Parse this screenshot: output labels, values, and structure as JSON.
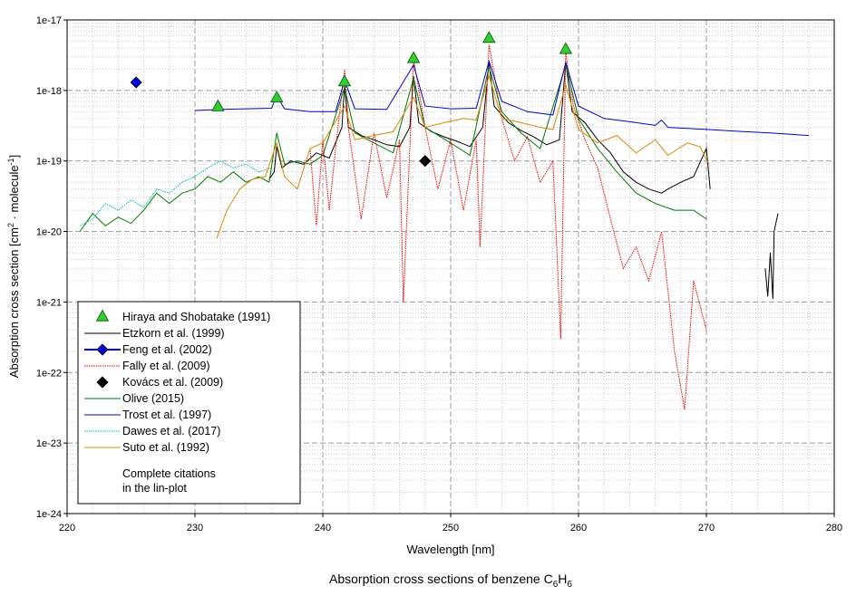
{
  "chart_data": {
    "type": "line",
    "title": "Absorption cross sections of benzene C",
    "title_sub1": "6",
    "title_mid": "H",
    "title_sub2": "6",
    "xlabel": "Wavelength [nm]",
    "ylabel": "Absorption cross section [cm",
    "ylabel_sup1": "2",
    "ylabel_mid": " · molecule",
    "ylabel_sup2": "-1",
    "ylabel_end": "]",
    "xlim": [
      220,
      280
    ],
    "ylim_log10": [
      -24,
      -17
    ],
    "x_ticks": [
      "220",
      "230",
      "240",
      "250",
      "260",
      "270",
      "280"
    ],
    "x_tick_values": [
      220,
      230,
      240,
      250,
      260,
      270,
      280
    ],
    "y_ticks": [
      "1e-17",
      "1e-18",
      "1e-19",
      "1e-20",
      "1e-21",
      "1e-22",
      "1e-23",
      "1e-24"
    ],
    "y_tick_exponents": [
      -17,
      -18,
      -19,
      -20,
      -21,
      -22,
      -23,
      -24
    ],
    "grid": true,
    "legend_position": "bottom-left",
    "note_line1": "Complete citations",
    "note_line2": "in the lin-plot",
    "series": [
      {
        "name": "Hiraya and Shobatake (1991)",
        "kind": "marker-triangle",
        "color": "#33cc33",
        "points": [
          [
            231.8,
            6e-19
          ],
          [
            236.4,
            8e-19
          ],
          [
            241.7,
            1.35e-18
          ],
          [
            247.1,
            2.9e-18
          ],
          [
            253.0,
            5.6e-18
          ],
          [
            259.0,
            3.9e-18
          ]
        ]
      },
      {
        "name": "Etzkorn et al. (1999)",
        "kind": "line",
        "color": "#000000",
        "points": [
          [
            235.8,
            5.5e-20
          ],
          [
            236.2,
            7e-20
          ],
          [
            236.4,
            1.6e-19
          ],
          [
            236.8,
            8e-20
          ],
          [
            237.5,
            1e-19
          ],
          [
            238.5,
            9e-20
          ],
          [
            239.5,
            1.3e-19
          ],
          [
            240.5,
            1.1e-19
          ],
          [
            241.5,
            3e-19
          ],
          [
            241.7,
            1.2e-18
          ],
          [
            242.0,
            3e-19
          ],
          [
            243.0,
            2.3e-19
          ],
          [
            244.0,
            2e-19
          ],
          [
            245.0,
            1.7e-19
          ],
          [
            246.0,
            1.6e-19
          ],
          [
            246.8,
            3e-19
          ],
          [
            247.1,
            1.6e-18
          ],
          [
            247.5,
            3.5e-19
          ],
          [
            248.5,
            2.6e-19
          ],
          [
            249.5,
            2.2e-19
          ],
          [
            250.5,
            1.9e-19
          ],
          [
            251.5,
            1.6e-19
          ],
          [
            252.5,
            3e-19
          ],
          [
            253.0,
            2.5e-18
          ],
          [
            253.4,
            6e-19
          ],
          [
            254.5,
            3.5e-19
          ],
          [
            255.5,
            2.7e-19
          ],
          [
            256.5,
            2.2e-19
          ],
          [
            257.5,
            1.7e-19
          ],
          [
            258.5,
            2e-19
          ],
          [
            259.0,
            2.5e-18
          ],
          [
            259.5,
            5e-19
          ],
          [
            260.5,
            3.5e-19
          ],
          [
            261.5,
            2e-19
          ],
          [
            262.5,
            1.3e-19
          ],
          [
            263.5,
            7e-20
          ],
          [
            264.5,
            5e-20
          ],
          [
            265.5,
            4e-20
          ],
          [
            266.5,
            3.5e-20
          ],
          [
            267.0,
            4e-20
          ],
          [
            268.0,
            5e-20
          ],
          [
            269.0,
            6e-20
          ],
          [
            270.0,
            1.5e-19
          ],
          [
            270.3,
            4e-20
          ]
        ]
      },
      {
        "name": "Feng et al. (2002)",
        "kind": "marker-diamond",
        "color": "#0000dd",
        "points": [
          [
            225.4,
            1.3e-18
          ]
        ]
      },
      {
        "name": "Fally et al. (2009)",
        "kind": "dotted",
        "color": "#ee0000",
        "points": [
          [
            239.0,
            1.5e-19
          ],
          [
            239.5,
            1.2e-20
          ],
          [
            240.0,
            2e-19
          ],
          [
            240.5,
            2e-20
          ],
          [
            241.0,
            1.5e-19
          ],
          [
            241.7,
            2e-18
          ],
          [
            242.0,
            3e-19
          ],
          [
            243.0,
            1.5e-20
          ],
          [
            244.0,
            2.5e-19
          ],
          [
            245.0,
            3e-20
          ],
          [
            246.0,
            2e-19
          ],
          [
            246.3,
            1e-21
          ],
          [
            247.1,
            2.8e-18
          ],
          [
            248.0,
            3e-19
          ],
          [
            249.0,
            4e-20
          ],
          [
            250.0,
            2e-19
          ],
          [
            251.0,
            2e-20
          ],
          [
            252.0,
            2e-19
          ],
          [
            252.3,
            6e-21
          ],
          [
            253.0,
            4.5e-18
          ],
          [
            254.0,
            4e-19
          ],
          [
            255.0,
            1e-19
          ],
          [
            256.0,
            2.2e-19
          ],
          [
            257.0,
            5e-20
          ],
          [
            258.0,
            1e-19
          ],
          [
            258.6,
            3e-22
          ],
          [
            259.0,
            3.5e-18
          ],
          [
            259.6,
            6e-19
          ],
          [
            260.5,
            2e-19
          ],
          [
            261.5,
            8e-20
          ],
          [
            262.5,
            1.5e-20
          ],
          [
            263.5,
            3e-21
          ],
          [
            264.5,
            6e-21
          ],
          [
            265.5,
            2e-21
          ],
          [
            266.5,
            1e-20
          ],
          [
            267.5,
            2e-22
          ],
          [
            268.3,
            3e-23
          ],
          [
            269.0,
            2e-21
          ],
          [
            270.0,
            4e-22
          ]
        ]
      },
      {
        "name": "Kovács et al. (2009)",
        "kind": "marker-diamond",
        "color": "#000000",
        "points": [
          [
            248.0,
            1e-19
          ]
        ]
      },
      {
        "name": "Olive (2015)",
        "kind": "line",
        "color": "#007a00",
        "points": [
          [
            221.0,
            1e-20
          ],
          [
            222.0,
            1.8e-20
          ],
          [
            223.0,
            1.2e-20
          ],
          [
            224.0,
            1.6e-20
          ],
          [
            225.0,
            1.3e-20
          ],
          [
            226.0,
            2e-20
          ],
          [
            227.0,
            3.5e-20
          ],
          [
            228.0,
            2.5e-20
          ],
          [
            229.0,
            3.5e-20
          ],
          [
            230.0,
            4e-20
          ],
          [
            231.0,
            6e-20
          ],
          [
            232.0,
            5e-20
          ],
          [
            233.0,
            7e-20
          ],
          [
            234.0,
            5e-20
          ],
          [
            235.0,
            6e-20
          ],
          [
            235.8,
            5e-20
          ],
          [
            236.4,
            2.5e-19
          ],
          [
            237.0,
            9e-20
          ],
          [
            238.0,
            1e-19
          ],
          [
            239.0,
            9e-20
          ],
          [
            240.0,
            1.2e-19
          ],
          [
            241.7,
            1.1e-18
          ],
          [
            242.5,
            2.5e-19
          ],
          [
            244.0,
            1.8e-19
          ],
          [
            245.5,
            1.3e-19
          ],
          [
            247.1,
            1.5e-18
          ],
          [
            248.0,
            3e-19
          ],
          [
            250.0,
            1.8e-19
          ],
          [
            251.5,
            1.2e-19
          ],
          [
            253.0,
            2.2e-18
          ],
          [
            254.0,
            5e-19
          ],
          [
            255.5,
            2.5e-19
          ],
          [
            257.0,
            1.5e-19
          ],
          [
            259.0,
            2.3e-18
          ],
          [
            260.0,
            4e-19
          ],
          [
            261.5,
            1.5e-19
          ],
          [
            263.0,
            7e-20
          ],
          [
            264.5,
            3.5e-20
          ],
          [
            266.0,
            2.5e-20
          ],
          [
            267.5,
            2e-20
          ],
          [
            269.0,
            2e-20
          ],
          [
            270.0,
            1.5e-20
          ]
        ]
      },
      {
        "name": "Trost et al. (1997)",
        "kind": "line",
        "color": "#0000cc",
        "points": [
          [
            230.0,
            5.2e-19
          ],
          [
            232.0,
            5.4e-19
          ],
          [
            234.0,
            5.5e-19
          ],
          [
            236.0,
            5.6e-19
          ],
          [
            236.4,
            8.5e-19
          ],
          [
            237.0,
            5.5e-19
          ],
          [
            239.0,
            5e-19
          ],
          [
            241.0,
            5e-19
          ],
          [
            241.7,
            1.4e-18
          ],
          [
            242.5,
            5.5e-19
          ],
          [
            245.0,
            5.4e-19
          ],
          [
            247.1,
            2.3e-18
          ],
          [
            248.0,
            6e-19
          ],
          [
            250.0,
            5.5e-19
          ],
          [
            252.0,
            5.6e-19
          ],
          [
            253.0,
            2.6e-18
          ],
          [
            254.0,
            7e-19
          ],
          [
            256.0,
            5e-19
          ],
          [
            258.0,
            4.5e-19
          ],
          [
            259.0,
            2.5e-18
          ],
          [
            260.0,
            6e-19
          ],
          [
            262.0,
            4e-19
          ],
          [
            264.0,
            3.6e-19
          ],
          [
            266.0,
            3.2e-19
          ],
          [
            266.5,
            3.8e-19
          ],
          [
            267.0,
            3e-19
          ],
          [
            270.0,
            2.8e-19
          ],
          [
            273.0,
            2.6e-19
          ],
          [
            275.0,
            2.5e-19
          ],
          [
            278.0,
            2.3e-19
          ]
        ]
      },
      {
        "name": "Dawes et al. (2017)",
        "kind": "dotted",
        "color": "#00bbbb",
        "points": [
          [
            221.0,
            1.2e-20
          ],
          [
            222.0,
            1.5e-20
          ],
          [
            223.0,
            2.5e-20
          ],
          [
            224.0,
            2e-20
          ],
          [
            225.0,
            2.8e-20
          ],
          [
            226.0,
            2.2e-20
          ],
          [
            227.0,
            4e-20
          ],
          [
            228.0,
            3.5e-20
          ],
          [
            229.0,
            5e-20
          ],
          [
            230.0,
            6e-20
          ],
          [
            231.0,
            8e-20
          ],
          [
            232.0,
            1e-19
          ],
          [
            233.0,
            8e-20
          ],
          [
            234.0,
            9e-20
          ],
          [
            235.0,
            7e-20
          ],
          [
            236.0,
            8e-20
          ]
        ]
      },
      {
        "name": "Suto et al. (1992)",
        "kind": "line",
        "color": "#dd8800",
        "points": [
          [
            231.7,
            8e-21
          ],
          [
            232.5,
            2e-20
          ],
          [
            233.5,
            4e-20
          ],
          [
            234.5,
            5.5e-20
          ],
          [
            235.5,
            6e-20
          ],
          [
            236.4,
            1.8e-19
          ],
          [
            237.0,
            6e-20
          ],
          [
            238.0,
            4e-20
          ],
          [
            239.0,
            1.5e-19
          ],
          [
            240.0,
            1.8e-19
          ],
          [
            241.7,
            6e-19
          ],
          [
            242.5,
            2e-19
          ],
          [
            244.0,
            2.3e-19
          ],
          [
            245.5,
            2.6e-19
          ],
          [
            247.1,
            8e-19
          ],
          [
            248.0,
            3e-19
          ],
          [
            249.5,
            3.5e-19
          ],
          [
            251.0,
            4e-19
          ],
          [
            252.0,
            3.8e-19
          ],
          [
            253.0,
            1.6e-18
          ],
          [
            254.0,
            4e-19
          ],
          [
            255.5,
            3.5e-19
          ],
          [
            257.0,
            3e-19
          ],
          [
            258.0,
            2.8e-19
          ],
          [
            259.0,
            1.2e-18
          ],
          [
            260.0,
            2.8e-19
          ],
          [
            261.5,
            1.8e-19
          ],
          [
            263.0,
            2.3e-19
          ],
          [
            264.5,
            1.3e-19
          ],
          [
            266.0,
            2e-19
          ],
          [
            267.0,
            1.2e-19
          ],
          [
            268.5,
            1.8e-19
          ],
          [
            269.5,
            1.6e-19
          ],
          [
            270.2,
            9e-20
          ]
        ]
      },
      {
        "name": "",
        "kind": "line",
        "color": "#000000",
        "points": [
          [
            274.6,
            3e-21
          ],
          [
            274.8,
            1.2e-21
          ],
          [
            275.0,
            5e-21
          ],
          [
            275.2,
            1.1e-21
          ],
          [
            275.3,
            1e-20
          ],
          [
            275.5,
            1.5e-20
          ],
          [
            275.6,
            1.8e-20
          ]
        ]
      }
    ]
  }
}
